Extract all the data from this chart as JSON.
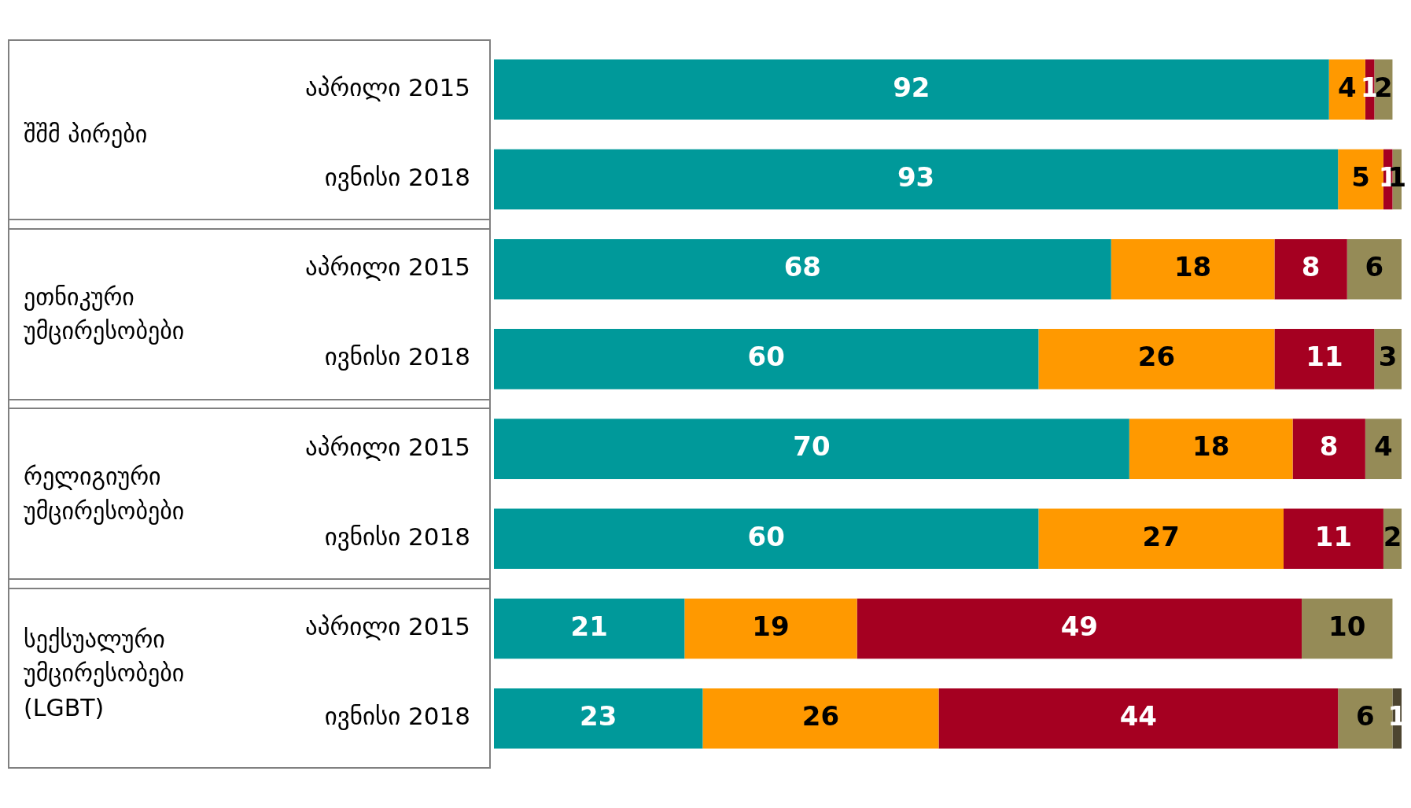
{
  "chart_data": {
    "type": "bar",
    "orientation": "horizontal",
    "stacked": true,
    "categories": [
      "აპრილი 2015",
      "ივნისი 2018",
      "აპრილი 2015",
      "ივნისი 2018",
      "აპრილი 2015",
      "ივნისი 2018",
      "აპრილი 2015",
      "ივნისი 2018"
    ],
    "series": [
      {
        "color": "#00999a",
        "values": [
          92,
          93,
          68,
          60,
          70,
          60,
          21,
          23
        ]
      },
      {
        "color": "#ff9900",
        "values": [
          4,
          5,
          18,
          26,
          18,
          27,
          19,
          26
        ]
      },
      {
        "color": "#a50021",
        "values": [
          1,
          1,
          8,
          11,
          8,
          11,
          49,
          44
        ]
      },
      {
        "color": "#958b57",
        "values": [
          2,
          1,
          6,
          3,
          4,
          2,
          10,
          6
        ]
      },
      {
        "color": "#4d4530",
        "values": [
          null,
          null,
          null,
          null,
          null,
          null,
          null,
          1
        ]
      }
    ],
    "xlim": [
      0,
      100
    ],
    "data_labels": true,
    "grid": false,
    "legend": false,
    "tick_labels": "y",
    "annotations": [
      "შშმ პირები",
      "ეთნიკური უმცირესობები",
      "რელიგიური უმცირესობები",
      "სექსუალური უმცირესობები (LGBT)"
    ]
  }
}
